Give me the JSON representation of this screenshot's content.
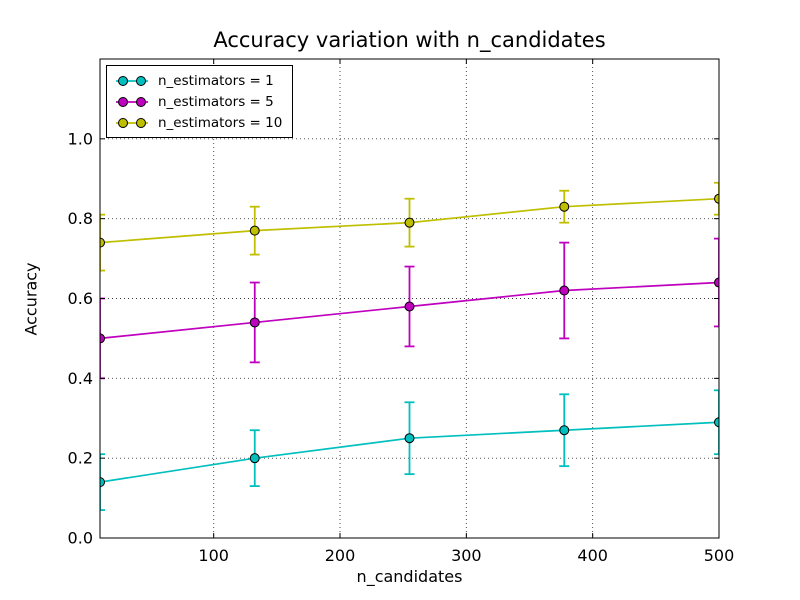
{
  "chart_data": {
    "type": "line",
    "title": "Accuracy variation with n_candidates",
    "xlabel": "n_candidates",
    "ylabel": "Accuracy",
    "x": [
      10,
      132.5,
      255,
      377.5,
      500
    ],
    "series": [
      {
        "name": "n_estimators = 1",
        "color": "#00bfbf",
        "values": [
          0.14,
          0.2,
          0.25,
          0.27,
          0.29
        ],
        "yerr": [
          0.07,
          0.07,
          0.09,
          0.09,
          0.08
        ]
      },
      {
        "name": "n_estimators = 5",
        "color": "#bf00bf",
        "values": [
          0.5,
          0.54,
          0.58,
          0.62,
          0.64
        ],
        "yerr": [
          0.1,
          0.1,
          0.1,
          0.12,
          0.11
        ]
      },
      {
        "name": "n_estimators = 10",
        "color": "#bfbf00",
        "values": [
          0.74,
          0.77,
          0.79,
          0.83,
          0.85
        ],
        "yerr": [
          0.07,
          0.06,
          0.06,
          0.04,
          0.04
        ]
      }
    ],
    "xlim": [
      10,
      500
    ],
    "ylim": [
      0,
      1.2
    ],
    "xticks": [
      100,
      200,
      300,
      400,
      500
    ],
    "yticks": [
      0.0,
      0.2,
      0.4,
      0.6,
      0.8,
      1.0
    ],
    "xtick_labels": [
      "100",
      "200",
      "300",
      "400",
      "500"
    ],
    "ytick_labels": [
      "0.0",
      "0.2",
      "0.4",
      "0.6",
      "0.8",
      "1.0"
    ],
    "grid": true,
    "grid_style": "dotted",
    "legend_position": "upper left",
    "marker": "o",
    "axes_color": "#000000",
    "background_color": "#ffffff"
  }
}
